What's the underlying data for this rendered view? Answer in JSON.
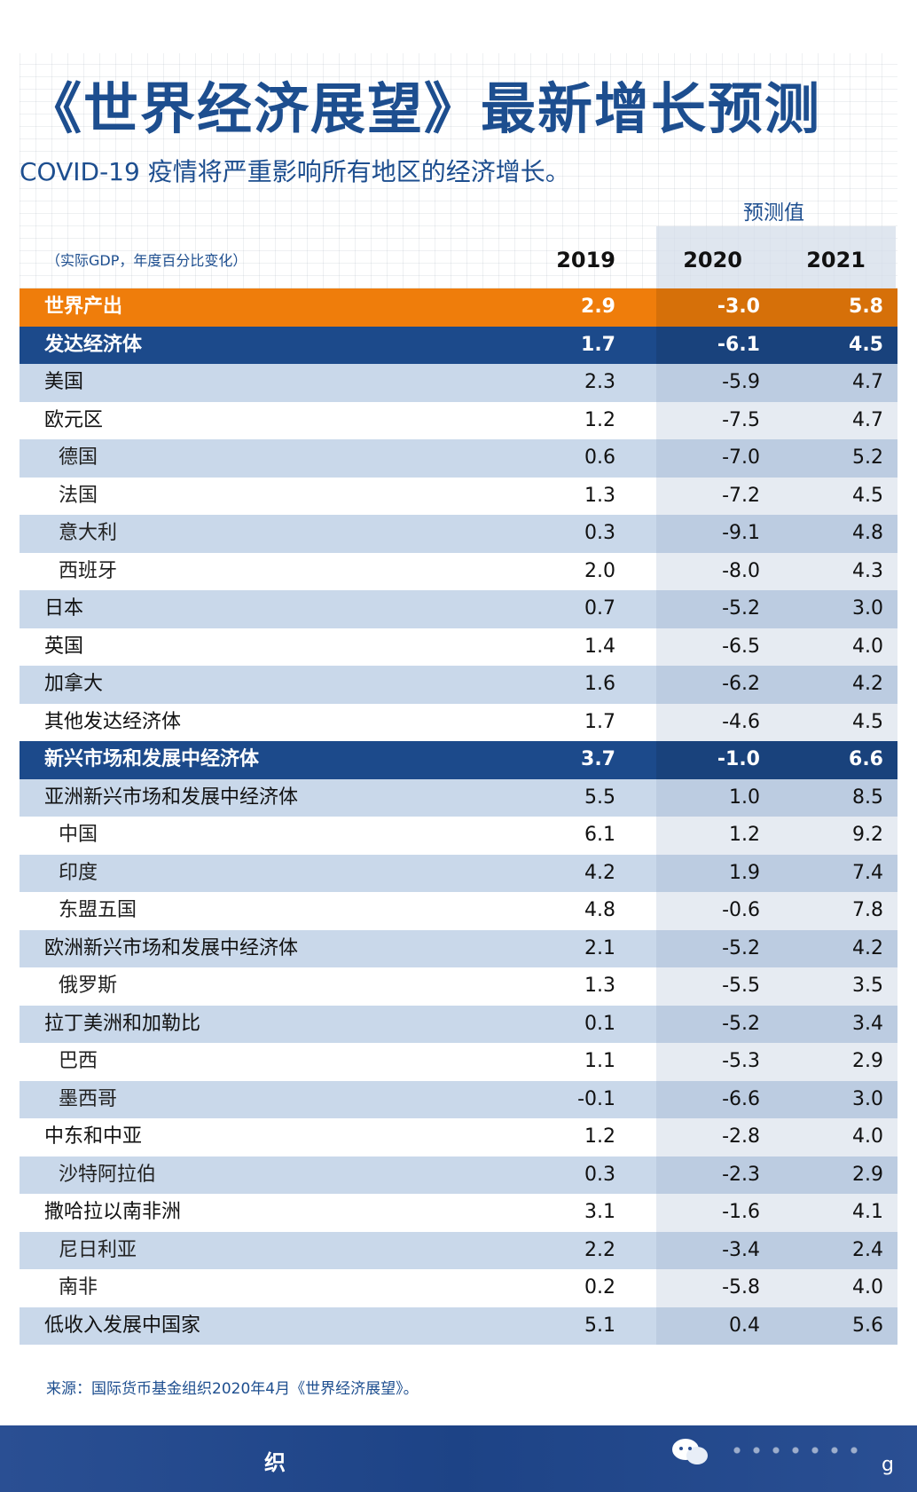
{
  "header": {
    "title": "《世界经济展望》最新增长预测",
    "subtitle": "COVID-19 疫情将严重影响所有地区的经济增长。",
    "forecast_label": "预测值",
    "units_label": "（实际GDP，年度百分比变化）"
  },
  "colors": {
    "title_blue": "#1d4e8f",
    "world_row": "#ef7d0b",
    "group_row": "#1c4a8b",
    "band_row": "#c9d8ea"
  },
  "chart_data": {
    "type": "table",
    "columns": [
      "2019",
      "2020",
      "2021"
    ],
    "rows": [
      {
        "label": "世界产出",
        "values": [
          "2.9",
          "-3.0",
          "5.8"
        ],
        "style": "orange"
      },
      {
        "label": "发达经济体",
        "values": [
          "1.7",
          "-6.1",
          "4.5"
        ],
        "style": "navy"
      },
      {
        "label": "美国",
        "values": [
          "2.3",
          "-5.9",
          "4.7"
        ],
        "style": "even"
      },
      {
        "label": "欧元区",
        "values": [
          "1.2",
          "-7.5",
          "4.7"
        ],
        "style": "odd"
      },
      {
        "label": "德国",
        "values": [
          "0.6",
          "-7.0",
          "5.2"
        ],
        "style": "even",
        "indent": true
      },
      {
        "label": "法国",
        "values": [
          "1.3",
          "-7.2",
          "4.5"
        ],
        "style": "odd",
        "indent": true
      },
      {
        "label": "意大利",
        "values": [
          "0.3",
          "-9.1",
          "4.8"
        ],
        "style": "even",
        "indent": true
      },
      {
        "label": "西班牙",
        "values": [
          "2.0",
          "-8.0",
          "4.3"
        ],
        "style": "odd",
        "indent": true
      },
      {
        "label": "日本",
        "values": [
          "0.7",
          "-5.2",
          "3.0"
        ],
        "style": "even"
      },
      {
        "label": "英国",
        "values": [
          "1.4",
          "-6.5",
          "4.0"
        ],
        "style": "odd"
      },
      {
        "label": "加拿大",
        "values": [
          "1.6",
          "-6.2",
          "4.2"
        ],
        "style": "even"
      },
      {
        "label": "其他发达经济体",
        "values": [
          "1.7",
          "-4.6",
          "4.5"
        ],
        "style": "odd"
      },
      {
        "label": "新兴市场和发展中经济体",
        "values": [
          "3.7",
          "-1.0",
          "6.6"
        ],
        "style": "navy"
      },
      {
        "label": "亚洲新兴市场和发展中经济体",
        "values": [
          "5.5",
          "1.0",
          "8.5"
        ],
        "style": "even"
      },
      {
        "label": "中国",
        "values": [
          "6.1",
          "1.2",
          "9.2"
        ],
        "style": "odd",
        "indent": true
      },
      {
        "label": "印度",
        "values": [
          "4.2",
          "1.9",
          "7.4"
        ],
        "style": "even",
        "indent": true
      },
      {
        "label": "东盟五国",
        "values": [
          "4.8",
          "-0.6",
          "7.8"
        ],
        "style": "odd",
        "indent": true
      },
      {
        "label": "欧洲新兴市场和发展中经济体",
        "values": [
          "2.1",
          "-5.2",
          "4.2"
        ],
        "style": "even"
      },
      {
        "label": "俄罗斯",
        "values": [
          "1.3",
          "-5.5",
          "3.5"
        ],
        "style": "odd",
        "indent": true
      },
      {
        "label": "拉丁美洲和加勒比",
        "values": [
          "0.1",
          "-5.2",
          "3.4"
        ],
        "style": "even"
      },
      {
        "label": "巴西",
        "values": [
          "1.1",
          "-5.3",
          "2.9"
        ],
        "style": "odd",
        "indent": true
      },
      {
        "label": "墨西哥",
        "values": [
          "-0.1",
          "-6.6",
          "3.0"
        ],
        "style": "even",
        "indent": true
      },
      {
        "label": "中东和中亚",
        "values": [
          "1.2",
          "-2.8",
          "4.0"
        ],
        "style": "odd"
      },
      {
        "label": "沙特阿拉伯",
        "values": [
          "0.3",
          "-2.3",
          "2.9"
        ],
        "style": "even",
        "indent": true
      },
      {
        "label": "撒哈拉以南非洲",
        "values": [
          "3.1",
          "-1.6",
          "4.1"
        ],
        "style": "odd"
      },
      {
        "label": "尼日利亚",
        "values": [
          "2.2",
          "-3.4",
          "2.4"
        ],
        "style": "even",
        "indent": true
      },
      {
        "label": "南非",
        "values": [
          "0.2",
          "-5.8",
          "4.0"
        ],
        "style": "odd",
        "indent": true
      },
      {
        "label": "低收入发展中国家",
        "values": [
          "5.1",
          "0.4",
          "5.6"
        ],
        "style": "even"
      }
    ]
  },
  "source": "来源：国际货币基金组织2020年4月《世界经济展望》。",
  "footer": {
    "glyph_left": "织",
    "glyph_right": "g",
    "chat_icon": "wechat-bubble-icon"
  }
}
